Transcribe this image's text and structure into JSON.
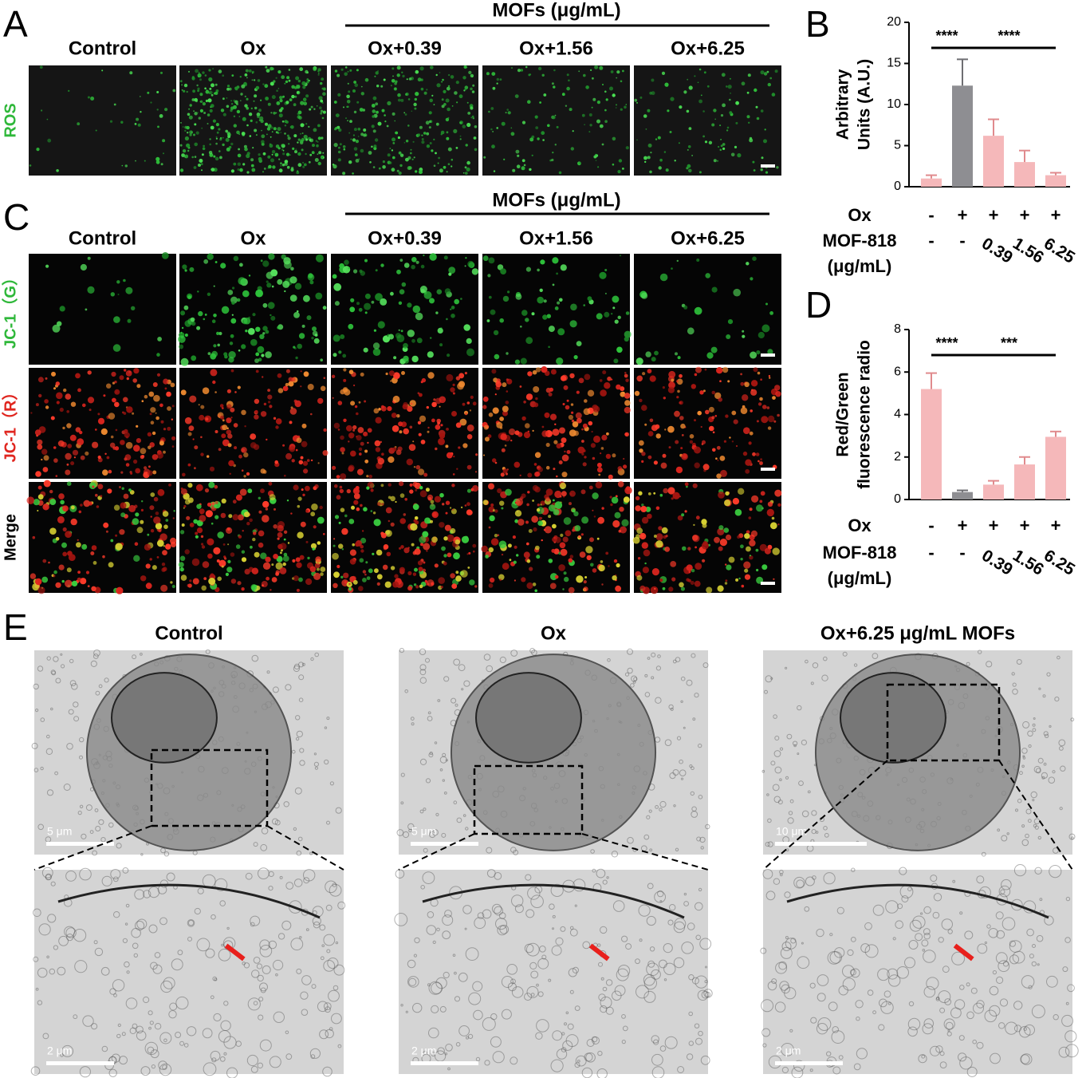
{
  "panel_letters": [
    "A",
    "B",
    "C",
    "D",
    "E"
  ],
  "fluorescence": {
    "group_header": "MOFs (μg/mL)",
    "columns": [
      "Control",
      "Ox",
      "Ox+0.39",
      "Ox+1.56",
      "Ox+6.25"
    ],
    "ros_label": "ROS",
    "jc1_rows": [
      "JC-1（G）",
      "JC-1（R）",
      "Merge"
    ]
  },
  "chart_data": [
    {
      "type": "bar",
      "ylabel": [
        "Arbitrary",
        "Units (A.U.)"
      ],
      "values": [
        1.0,
        12.3,
        6.2,
        3.0,
        1.4
      ],
      "errors": [
        0.4,
        3.2,
        2.0,
        1.4,
        0.3
      ],
      "colors": [
        "#f5b8ba",
        "#8e8e92",
        "#f5b8ba",
        "#f5b8ba",
        "#f5b8ba"
      ],
      "ylim": [
        0,
        20
      ],
      "yticks": [
        0,
        5,
        10,
        15,
        20
      ],
      "annotations": [
        "****",
        "****"
      ],
      "conditions": [
        {
          "label": [
            "Ox"
          ],
          "values": [
            "-",
            "+",
            "+",
            "+",
            "+"
          ]
        },
        {
          "label": [
            "MOF-818",
            "(μg/mL)"
          ],
          "values": [
            "-",
            "-",
            "0.39",
            "1.56",
            "6.25"
          ]
        }
      ]
    },
    {
      "type": "bar",
      "ylabel": [
        "Red/Green",
        "fluorescence radio"
      ],
      "values": [
        5.2,
        0.35,
        0.7,
        1.65,
        2.95
      ],
      "errors": [
        0.75,
        0.08,
        0.18,
        0.35,
        0.25
      ],
      "colors": [
        "#f5b8ba",
        "#8e8e92",
        "#f5b8ba",
        "#f5b8ba",
        "#f5b8ba"
      ],
      "ylim": [
        0,
        8
      ],
      "yticks": [
        0,
        2,
        4,
        6,
        8
      ],
      "annotations": [
        "****",
        "***"
      ],
      "conditions": [
        {
          "label": [
            "Ox"
          ],
          "values": [
            "-",
            "+",
            "+",
            "+",
            "+"
          ]
        },
        {
          "label": [
            "MOF-818",
            "(μg/mL)"
          ],
          "values": [
            "-",
            "-",
            "0.39",
            "1.56",
            "6.25"
          ]
        }
      ]
    }
  ],
  "tem": {
    "columns": [
      "Control",
      "Ox",
      "Ox+6.25 μg/mL MOFs"
    ],
    "scale_top": [
      "5 μm",
      "5 μm",
      "10 μm"
    ],
    "scale_bottom": [
      "2 μm",
      "2 μm",
      "2 μm"
    ]
  }
}
